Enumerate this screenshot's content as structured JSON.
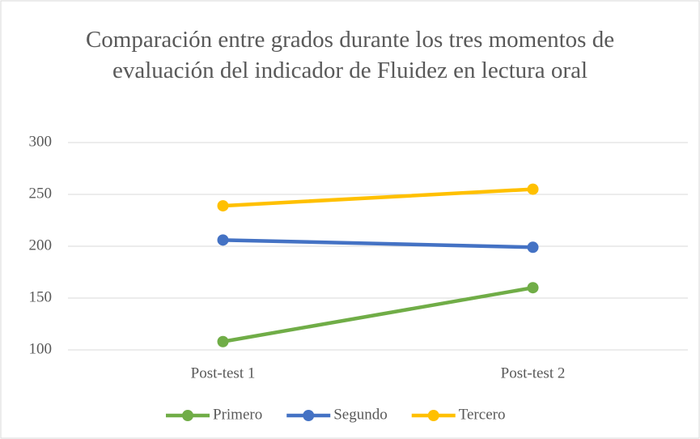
{
  "chart_data": {
    "type": "line",
    "title": "Comparación entre grados durante los tres momentos de evaluación del indicador de Fluidez en lectura oral",
    "categories": [
      "Post-test 1",
      "Post-test 2"
    ],
    "series": [
      {
        "name": "Primero",
        "color": "#70ad47",
        "values": [
          108,
          160
        ]
      },
      {
        "name": "Segundo",
        "color": "#4472c4",
        "values": [
          206,
          199
        ]
      },
      {
        "name": "Tercero",
        "color": "#ffc000",
        "values": [
          239,
          255
        ]
      }
    ],
    "ylim": [
      100,
      300
    ],
    "yticks": [
      100,
      150,
      200,
      250,
      300
    ],
    "grid": true,
    "legend": "bottom"
  }
}
